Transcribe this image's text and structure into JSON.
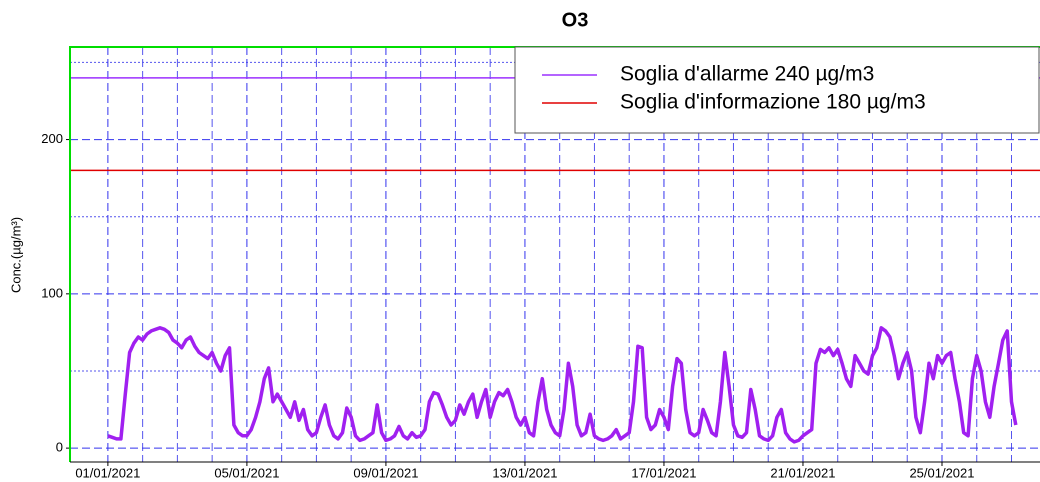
{
  "chart_data": {
    "type": "line",
    "title": "O3",
    "y_label": "Conc.(µg/m³)",
    "xlim": [
      -1.09,
      26.82
    ],
    "ylim": [
      -9,
      260
    ],
    "xticks": [
      {
        "value": 0,
        "label": "01/01/2021"
      },
      {
        "value": 4,
        "label": "05/01/2021"
      },
      {
        "value": 8,
        "label": "09/01/2021"
      },
      {
        "value": 12,
        "label": "13/01/2021"
      },
      {
        "value": 16,
        "label": "17/01/2021"
      },
      {
        "value": 20,
        "label": "21/01/2021"
      },
      {
        "value": 24,
        "label": "25/01/2021"
      }
    ],
    "xminor": [
      1,
      2,
      3,
      5,
      6,
      7,
      9,
      10,
      11,
      13,
      14,
      15,
      17,
      18,
      19,
      21,
      22,
      23,
      25,
      26
    ],
    "yticks": [
      0,
      100,
      200
    ],
    "yminor": [
      50,
      150,
      250
    ],
    "grid": true,
    "legend": "upper right",
    "thresholds": [
      {
        "name": "Soglia d'allarme 240 µg/m3",
        "color": "#9b30ff",
        "value": 240
      },
      {
        "name": "Soglia d'informazione 180 µg/m3",
        "color": "#e00000",
        "value": 180
      }
    ],
    "x": [
      0,
      0.125,
      0.25,
      0.375,
      0.5,
      0.625,
      0.75,
      0.875,
      1,
      1.125,
      1.25,
      1.375,
      1.5,
      1.625,
      1.75,
      1.875,
      2,
      2.125,
      2.25,
      2.375,
      2.5,
      2.625,
      2.75,
      2.875,
      3,
      3.125,
      3.25,
      3.375,
      3.5,
      3.625,
      3.75,
      3.875,
      4,
      4.125,
      4.25,
      4.375,
      4.5,
      4.625,
      4.75,
      4.875,
      5,
      5.125,
      5.25,
      5.375,
      5.5,
      5.625,
      5.75,
      5.875,
      6,
      6.125,
      6.25,
      6.375,
      6.5,
      6.625,
      6.75,
      6.875,
      7,
      7.125,
      7.25,
      7.375,
      7.5,
      7.625,
      7.75,
      7.875,
      8,
      8.125,
      8.25,
      8.375,
      8.5,
      8.625,
      8.75,
      8.875,
      9,
      9.125,
      9.25,
      9.375,
      9.5,
      9.625,
      9.75,
      9.875,
      10,
      10.125,
      10.25,
      10.375,
      10.5,
      10.625,
      10.75,
      10.875,
      11,
      11.125,
      11.25,
      11.375,
      11.5,
      11.625,
      11.75,
      11.875,
      12,
      12.125,
      12.25,
      12.375,
      12.5,
      12.625,
      12.75,
      12.875,
      13,
      13.125,
      13.25,
      13.375,
      13.5,
      13.625,
      13.75,
      13.875,
      14,
      14.125,
      14.25,
      14.375,
      14.5,
      14.625,
      14.75,
      14.875,
      15,
      15.125,
      15.25,
      15.375,
      15.5,
      15.625,
      15.75,
      15.875,
      16,
      16.125,
      16.25,
      16.375,
      16.5,
      16.625,
      16.75,
      16.875,
      17,
      17.125,
      17.25,
      17.375,
      17.5,
      17.625,
      17.75,
      17.875,
      18,
      18.125,
      18.25,
      18.375,
      18.5,
      18.625,
      18.75,
      18.875,
      19,
      19.125,
      19.25,
      19.375,
      19.5,
      19.625,
      19.75,
      19.875,
      20,
      20.125,
      20.25,
      20.375,
      20.5,
      20.625,
      20.75,
      20.875,
      21,
      21.125,
      21.25,
      21.375,
      21.5,
      21.625,
      21.75,
      21.875,
      22,
      22.125,
      22.25,
      22.375,
      22.5,
      22.625,
      22.75,
      22.875,
      23,
      23.125,
      23.25,
      23.375,
      23.5,
      23.625,
      23.75,
      23.875,
      24,
      24.125,
      24.25,
      24.375,
      24.5,
      24.625,
      24.75,
      24.875,
      25,
      25.125,
      25.25,
      25.375,
      25.5,
      25.625,
      25.75,
      25.875,
      26,
      26.125
    ],
    "series": [
      {
        "color": "#a020f0",
        "values": [
          8,
          7,
          6,
          6,
          35,
          62,
          68,
          72,
          70,
          74,
          76,
          77,
          78,
          77,
          75,
          70,
          68,
          65,
          70,
          72,
          66,
          62,
          60,
          58,
          62,
          55,
          50,
          60,
          65,
          15,
          10,
          8,
          8,
          12,
          20,
          30,
          45,
          52,
          30,
          35,
          30,
          25,
          20,
          30,
          18,
          25,
          12,
          8,
          10,
          20,
          28,
          15,
          8,
          6,
          10,
          26,
          20,
          8,
          5,
          6,
          8,
          10,
          28,
          10,
          5,
          6,
          8,
          14,
          8,
          6,
          10,
          7,
          8,
          12,
          30,
          36,
          35,
          28,
          20,
          15,
          18,
          28,
          22,
          30,
          35,
          20,
          30,
          38,
          20,
          30,
          36,
          34,
          38,
          30,
          20,
          15,
          20,
          10,
          8,
          30,
          45,
          25,
          15,
          10,
          8,
          25,
          55,
          40,
          15,
          8,
          10,
          22,
          8,
          6,
          5,
          6,
          8,
          12,
          6,
          8,
          10,
          30,
          66,
          65,
          20,
          12,
          15,
          25,
          20,
          12,
          40,
          58,
          55,
          25,
          10,
          8,
          10,
          25,
          18,
          10,
          8,
          30,
          62,
          40,
          15,
          8,
          7,
          10,
          38,
          25,
          8,
          6,
          5,
          8,
          20,
          25,
          10,
          6,
          4,
          5,
          8,
          10,
          12,
          55,
          64,
          62,
          65,
          60,
          64,
          55,
          45,
          40,
          60,
          55,
          50,
          48,
          60,
          65,
          78,
          76,
          72,
          60,
          45,
          55,
          62,
          50,
          20,
          10,
          30,
          55,
          45,
          60,
          55,
          60,
          62,
          45,
          30,
          10,
          8,
          45,
          60,
          50,
          30,
          20,
          40,
          55,
          70,
          76,
          30,
          15
        ]
      }
    ]
  }
}
